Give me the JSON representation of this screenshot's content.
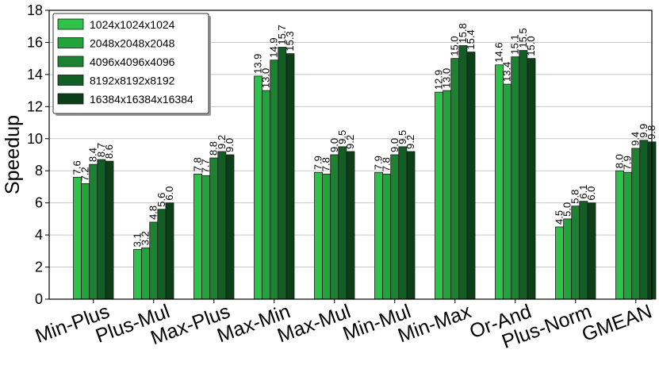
{
  "chart_data": {
    "type": "bar",
    "title": "",
    "xlabel": "",
    "ylabel": "Speedup",
    "ylim": [
      0,
      18
    ],
    "yticks": [
      0,
      2,
      4,
      6,
      8,
      10,
      12,
      14,
      16,
      18
    ],
    "grid": "horizontal",
    "legend_position": "top-left",
    "categories": [
      "Min-Plus",
      "Plus-Mul",
      "Max-Plus",
      "Max-Min",
      "Max-Mul",
      "Min-Mul",
      "Min-Max",
      "Or-And",
      "Plus-Norm",
      "GMEAN"
    ],
    "series": [
      {
        "name": "1024x1024x1024",
        "color": "#2dc24a",
        "values": [
          7.6,
          3.1,
          7.8,
          13.9,
          7.9,
          7.9,
          12.9,
          14.6,
          4.5,
          8.0
        ],
        "labels": [
          "7.6",
          "3.1",
          "7.8",
          "13.9",
          "7.9",
          "7.9",
          "12.9",
          "14.6",
          "4.5",
          "8.0"
        ]
      },
      {
        "name": "2048x2048x2048",
        "color": "#22a33c",
        "values": [
          7.2,
          3.2,
          7.7,
          13.0,
          7.8,
          7.8,
          13.0,
          13.4,
          5.0,
          7.9
        ],
        "labels": [
          "7.2",
          "3.2",
          "7.7",
          "13.0",
          "7.8",
          "7.8",
          "13.0",
          "13.4",
          "5.0",
          "7.9"
        ]
      },
      {
        "name": "4096x4096x4096",
        "color": "#1c8232",
        "values": [
          8.4,
          4.8,
          8.8,
          14.9,
          9.0,
          9.0,
          15.0,
          15.1,
          5.8,
          9.4
        ],
        "labels": [
          "8.4",
          "4.8",
          "8.8",
          "14.9",
          "9.0",
          "9.0",
          "15.0",
          "15.1",
          "5.8",
          "9.4"
        ]
      },
      {
        "name": "8192x8192x8192",
        "color": "#135e24",
        "values": [
          8.7,
          5.6,
          9.2,
          15.7,
          9.5,
          9.5,
          15.8,
          15.5,
          6.1,
          9.9
        ],
        "labels": [
          "8.7",
          "5.6",
          "9.2",
          "15.7",
          "9.5",
          "9.5",
          "15.8",
          "15.5",
          "6.1",
          "9.9"
        ]
      },
      {
        "name": "16384x16384x16384",
        "color": "#0c3f17",
        "values": [
          8.6,
          6.0,
          9.0,
          15.3,
          9.2,
          9.2,
          15.4,
          15.0,
          6.0,
          9.8
        ],
        "labels": [
          "8.6",
          "6.0",
          "9.0",
          "15.3",
          "9.2",
          "9.2",
          "15.4",
          "15.0",
          "6.0",
          "9.8"
        ]
      }
    ]
  }
}
